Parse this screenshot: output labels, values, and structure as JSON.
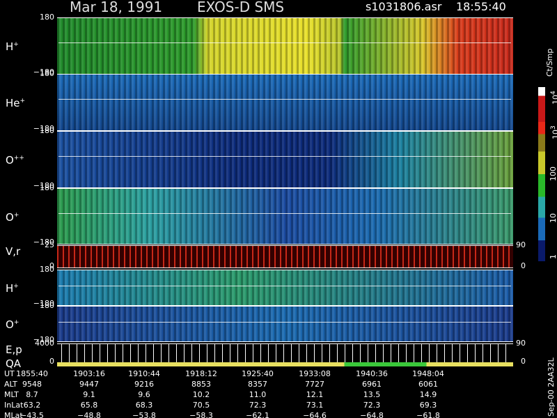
{
  "header": {
    "date": "Mar 18, 1991",
    "instrument": "EXOS-D SMS",
    "file": "s1031806.asr",
    "time": "18:55:40"
  },
  "panels": [
    {
      "label": "H",
      "sup": "+",
      "top": "180",
      "bottom": "−180"
    },
    {
      "label": "He",
      "sup": "+",
      "top": "180",
      "bottom": "−180"
    },
    {
      "label": "O",
      "sup": "++",
      "top": "180",
      "bottom": "−180"
    },
    {
      "label": "O",
      "sup": "+",
      "top": "180",
      "bottom": "−180"
    },
    {
      "label": "V,r",
      "top": "25",
      "bottom": "0",
      "right_top": "90",
      "right_bottom": "0"
    },
    {
      "label": "H",
      "sup": "+",
      "top": "180",
      "bottom": "−180"
    },
    {
      "label": "O",
      "sup": "+",
      "top": "180",
      "bottom": "−180"
    },
    {
      "label": "E,p",
      "label2": "QA",
      "top": "4000",
      "bottom": "0",
      "right_top": "90",
      "right_bottom": "0"
    }
  ],
  "colorbar": {
    "unit": "Ct/Smp",
    "labels": [
      {
        "base": "10",
        "exp": "4"
      },
      {
        "base": "10",
        "exp": "3"
      },
      {
        "base": "100"
      },
      {
        "base": "10"
      },
      {
        "base": "1"
      }
    ]
  },
  "table": {
    "rows": [
      [
        "UT",
        "1855:40",
        "1903:16",
        "1910:44",
        "1918:12",
        "1925:40",
        "1933:08",
        "1940:36",
        "1948:04"
      ],
      [
        "ALT",
        "9548",
        "9447",
        "9216",
        "8853",
        "8357",
        "7727",
        "6961",
        "6061"
      ],
      [
        "MLT",
        "8.7",
        "9.1",
        "9.6",
        "10.2",
        "11.0",
        "12.1",
        "13.5",
        "14.9"
      ],
      [
        "InLat",
        "63.2",
        "65.8",
        "68.3",
        "70.5",
        "72.3",
        "73.1",
        "72.3",
        "69.3"
      ],
      [
        "MLat",
        "−43.5",
        "−48.8",
        "−53.8",
        "−58.3",
        "−62.1",
        "−64.6",
        "−64.8",
        "−61.8"
      ]
    ]
  },
  "footer_note": "Sep-00 2AA32L"
}
